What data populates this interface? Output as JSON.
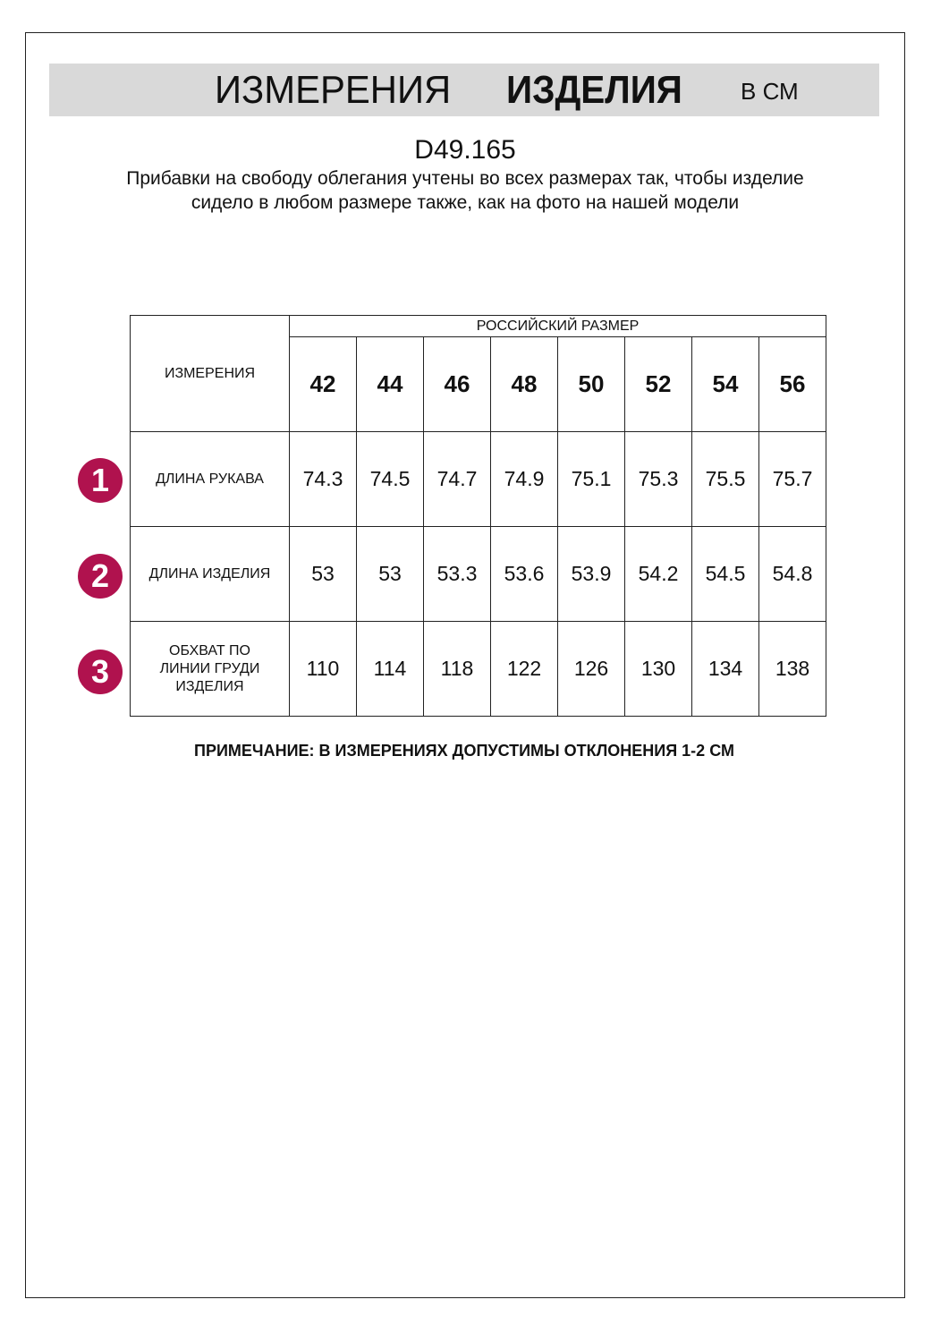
{
  "header": {
    "title_regular": "ИЗМЕРЕНИЯ",
    "title_bold": "ИЗДЕЛИЯ",
    "unit": "В СМ"
  },
  "product_code": "D49.165",
  "description": "Прибавки на свободу облегания учтены во всех размерах так, чтобы изделие сидело в любом размере также, как на фото на нашей модели",
  "table": {
    "measure_header": "ИЗМЕРЕНИЯ",
    "size_header": "РОССИЙСКИЙ РАЗМЕР",
    "sizes": [
      "42",
      "44",
      "46",
      "48",
      "50",
      "52",
      "54",
      "56"
    ],
    "rows": [
      {
        "marker": "1",
        "label": "ДЛИНА РУКАВА",
        "values": [
          "74.3",
          "74.5",
          "74.7",
          "74.9",
          "75.1",
          "75.3",
          "75.5",
          "75.7"
        ]
      },
      {
        "marker": "2",
        "label": "ДЛИНА ИЗДЕЛИЯ",
        "values": [
          "53",
          "53",
          "53.3",
          "53.6",
          "53.9",
          "54.2",
          "54.5",
          "54.8"
        ]
      },
      {
        "marker": "3",
        "label": "ОБХВАТ ПО ЛИНИИ ГРУДИ ИЗДЕЛИЯ",
        "values": [
          "110",
          "114",
          "118",
          "122",
          "126",
          "130",
          "134",
          "138"
        ]
      }
    ]
  },
  "note": "ПРИМЕЧАНИЕ: В ИЗМЕРЕНИЯХ ДОПУСТИМЫ ОТКЛОНЕНИЯ 1-2 СМ",
  "colors": {
    "banner": "#d9d9d9",
    "marker": "#b0124e"
  }
}
